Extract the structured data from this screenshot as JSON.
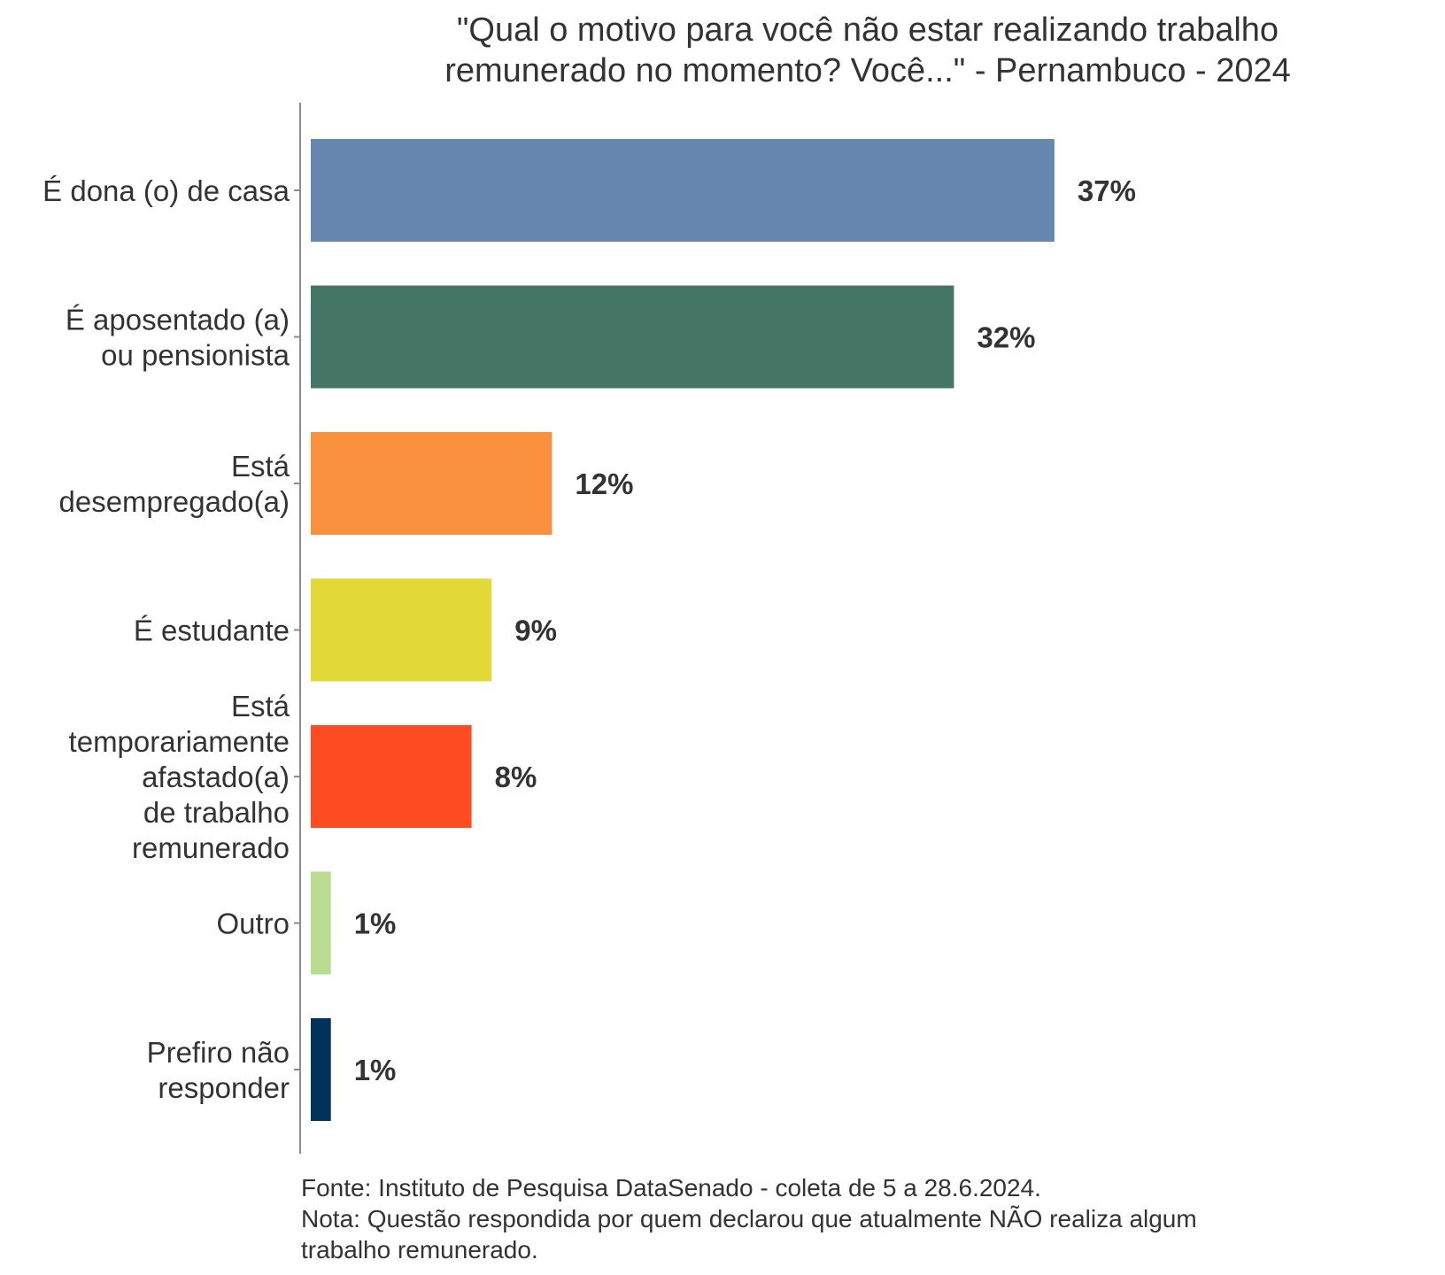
{
  "chart_data": {
    "type": "bar",
    "orientation": "horizontal",
    "title": "\"Qual o motivo para você não estar realizando trabalho remunerado no momento? Você...\" - Pernambuco - 2024",
    "title_lines": [
      "\"Qual o motivo para você não estar realizando trabalho",
      "remunerado no momento? Você...\" - Pernambuco - 2024"
    ],
    "xlabel": "",
    "ylabel": "",
    "xlim": [
      0,
      37
    ],
    "grid": false,
    "legend": "none",
    "categories": [
      "É dona (o) de casa",
      "É aposentado (a) ou pensionista",
      "Está desempregado(a)",
      "É estudante",
      "Está temporariamente afastado(a) de trabalho remunerado",
      "Outro",
      "Prefiro não responder"
    ],
    "category_lines": [
      [
        "É dona (o) de casa"
      ],
      [
        "É aposentado (a)",
        "ou pensionista"
      ],
      [
        "Está",
        "desempregado(a)"
      ],
      [
        "É estudante"
      ],
      [
        "Está",
        "temporariamente",
        "afastado(a)",
        "de trabalho",
        "remunerado"
      ],
      [
        "Outro"
      ],
      [
        "Prefiro não",
        "responder"
      ]
    ],
    "values": [
      37,
      32,
      12,
      9,
      8,
      1,
      1
    ],
    "value_labels": [
      "37%",
      "32%",
      "12%",
      "9%",
      "8%",
      "1%",
      "1%"
    ],
    "colors": [
      "#6688B0",
      "#457564",
      "#F8903D",
      "#E3D936",
      "#FF4B22",
      "#BADC91",
      "#00325A"
    ],
    "caption_lines": [
      "Fonte: Instituto de Pesquisa DataSenado - coleta de 5 a 28.6.2024.",
      "Nota: Questão respondida por quem declarou que atualmente NÃO realiza algum",
      "trabalho remunerado."
    ]
  }
}
